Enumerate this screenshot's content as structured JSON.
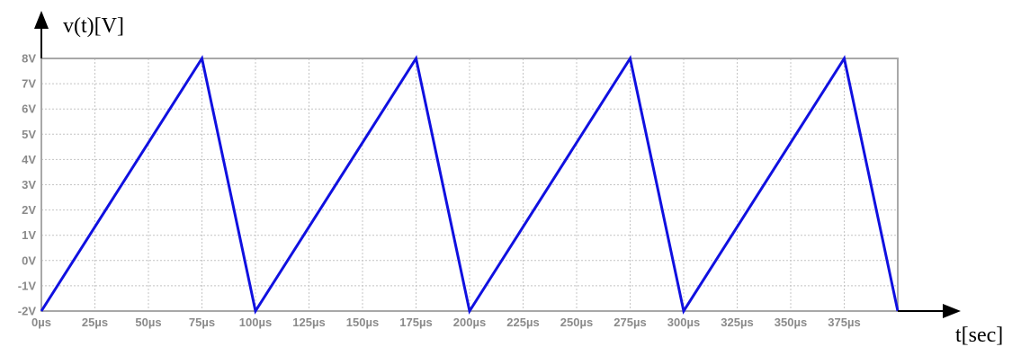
{
  "chart_data": {
    "type": "line",
    "title": "",
    "ylabel": "v(t)[V]",
    "xlabel": "t[sec]",
    "xlim": [
      0,
      400
    ],
    "ylim": [
      -2,
      8
    ],
    "xunit": "µs",
    "yunit": "V",
    "grid": true,
    "x_ticks": [
      "0µs",
      "25µs",
      "50µs",
      "75µs",
      "100µs",
      "125µs",
      "150µs",
      "175µs",
      "200µs",
      "225µs",
      "250µs",
      "275µs",
      "300µs",
      "325µs",
      "350µs",
      "375µs"
    ],
    "y_ticks": [
      "8V",
      "7V",
      "6V",
      "5V",
      "4V",
      "3V",
      "2V",
      "1V",
      "0V",
      "-1V",
      "-2V"
    ],
    "series": [
      {
        "x": [
          0,
          75,
          100,
          175,
          200,
          275,
          300,
          375,
          400
        ],
        "y": [
          -2,
          8,
          -2,
          8,
          -2,
          8,
          -2,
          8,
          -2
        ]
      }
    ]
  },
  "colors": {
    "series": "#1010e0",
    "frame": "#a8a8a8",
    "grid": "#c4c4c4",
    "tick_label": "#8a8a8a",
    "axis_arrow": "#000000"
  }
}
